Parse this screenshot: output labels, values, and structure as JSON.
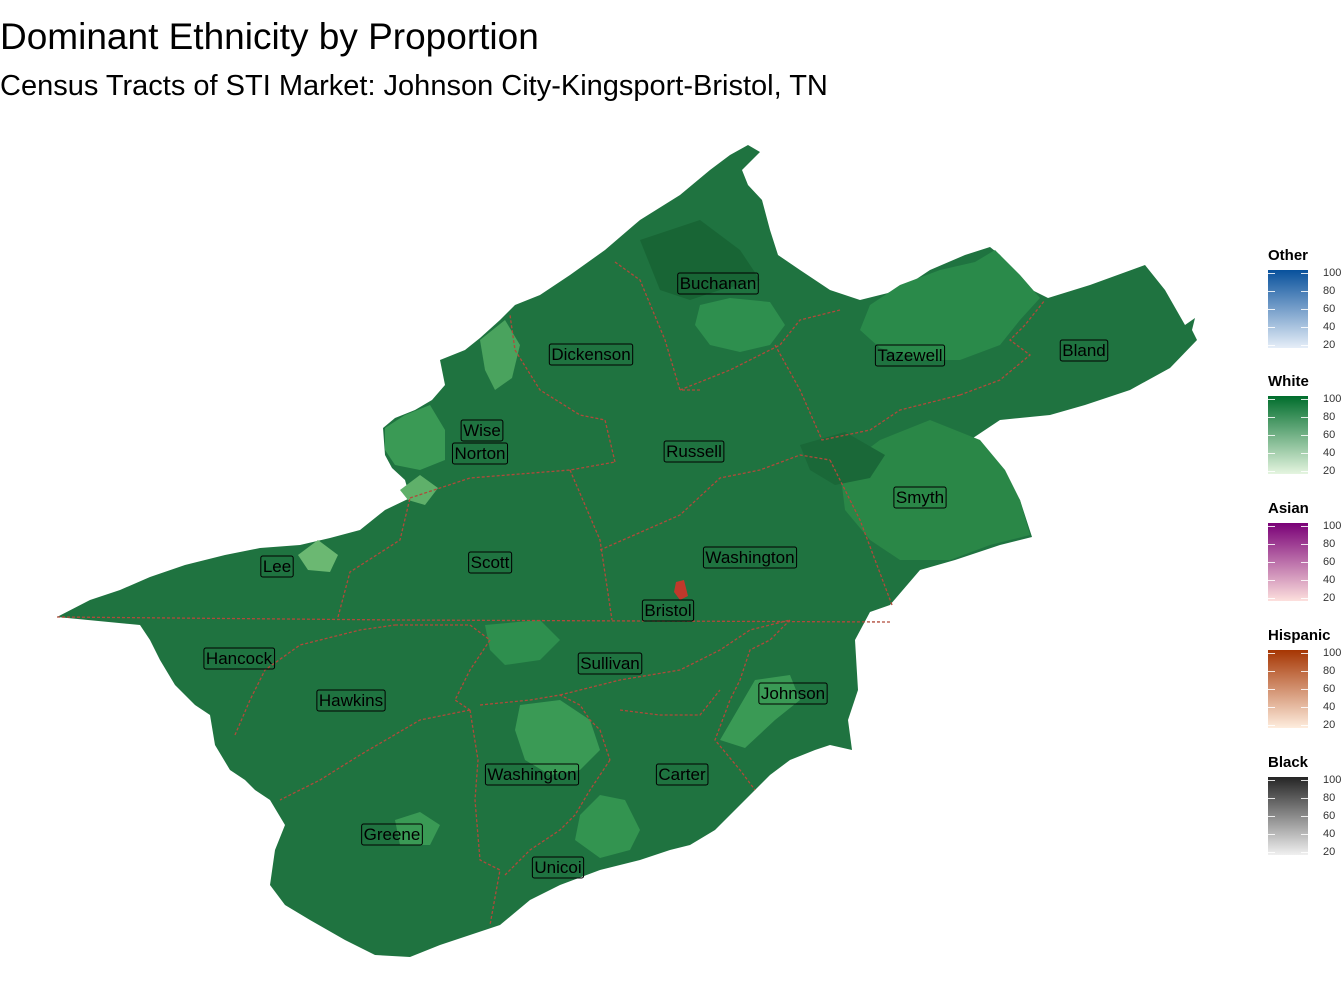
{
  "title": "Dominant Ethnicity by Proportion",
  "subtitle": "Census Tracts of STI Market: Johnson City-Kingsport-Bristol, TN",
  "map": {
    "colors": {
      "fill_dark": "#1e6b3c",
      "fill_mid": "#237c43",
      "fill_light": "#2e8f4e",
      "fill_pale": "#5fb06a",
      "county_border": "#b04a3a"
    },
    "county_labels": [
      "Buchanan",
      "Dickenson",
      "Tazewell",
      "Bland",
      "Wise",
      "Norton",
      "Russell",
      "Smyth",
      "Lee",
      "Scott",
      "Washington",
      "Bristol",
      "Hancock",
      "Sullivan",
      "Hawkins",
      "Johnson",
      "Washington",
      "Carter",
      "Greene",
      "Unicoi"
    ]
  },
  "legends": [
    {
      "title": "Other",
      "ticks": [
        "100",
        "80",
        "60",
        "40",
        "20"
      ],
      "color_low": "#e6eef8",
      "color_high": "#08519c"
    },
    {
      "title": "White",
      "ticks": [
        "100",
        "80",
        "60",
        "40",
        "20"
      ],
      "color_low": "#e5f5e0",
      "color_high": "#006d2c"
    },
    {
      "title": "Asian",
      "ticks": [
        "100",
        "80",
        "60",
        "40",
        "20"
      ],
      "color_low": "#fde0dd",
      "color_high": "#7a0177"
    },
    {
      "title": "Hispanic",
      "ticks": [
        "100",
        "80",
        "60",
        "40",
        "20"
      ],
      "color_low": "#feedde",
      "color_high": "#a63603"
    },
    {
      "title": "Black",
      "ticks": [
        "100",
        "80",
        "60",
        "40",
        "20"
      ],
      "color_low": "#f0f0f0",
      "color_high": "#252525"
    }
  ]
}
